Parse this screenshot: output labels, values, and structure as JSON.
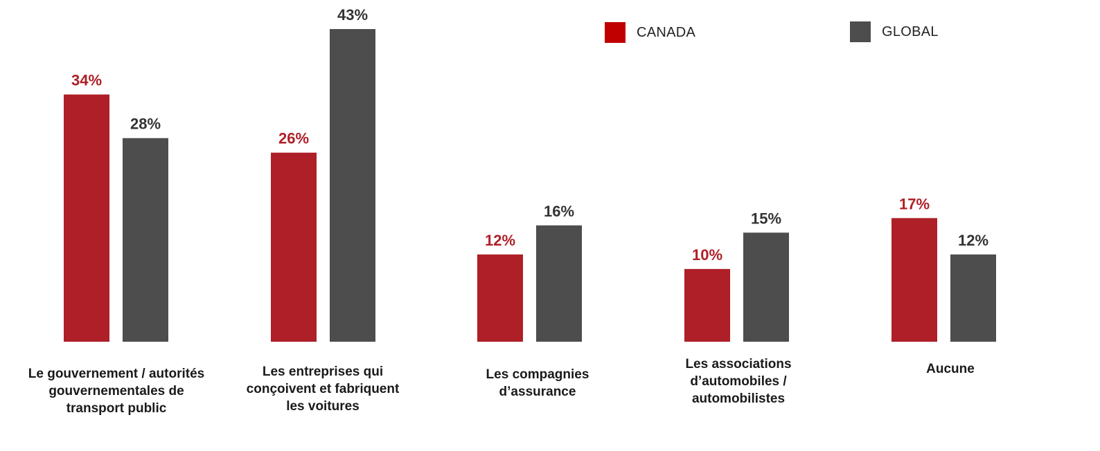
{
  "chart_data": {
    "type": "bar",
    "categories": [
      "Le gouvernement / autorités gouvernementales de transport public",
      "Les entreprises qui conçoivent et fabriquent les voitures",
      "Les compagnies d’assurance",
      "Les associations d’automobiles / automobilistes",
      "Aucune"
    ],
    "category_lines": [
      [
        "Le gouvernement / autorités",
        "gouvernementales de",
        "transport public"
      ],
      [
        "Les entreprises qui",
        "conçoivent et fabriquent",
        "les voitures"
      ],
      [
        "Les compagnies",
        "d’assurance"
      ],
      [
        "Les associations",
        "d’automobiles /",
        "automobilistes"
      ],
      [
        "Aucune"
      ]
    ],
    "series": [
      {
        "name": "CANADA",
        "values": [
          34,
          26,
          12,
          10,
          17
        ],
        "labels": [
          "34%",
          "26%",
          "12%",
          "10%",
          "17%"
        ],
        "color": "#ae1f27",
        "label_color": "#ae1f27"
      },
      {
        "name": "GLOBAL",
        "values": [
          28,
          43,
          16,
          15,
          12
        ],
        "labels": [
          "28%",
          "43%",
          "16%",
          "15%",
          "12%"
        ],
        "color": "#4d4d4d",
        "label_color": "#333333"
      }
    ],
    "ylim": [
      0,
      43
    ],
    "grid": false,
    "legend_position": "top-right",
    "legend_colors": [
      "#c00000",
      "#4d4d4d"
    ]
  }
}
